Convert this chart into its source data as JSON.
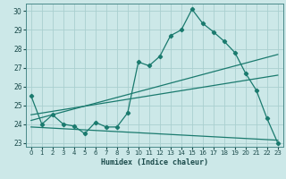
{
  "xlabel": "Humidex (Indice chaleur)",
  "bg_color": "#cce8e8",
  "grid_color": "#aacfcf",
  "line_color": "#1a7a6e",
  "xlim": [
    -0.5,
    23.5
  ],
  "ylim": [
    22.8,
    30.4
  ],
  "xticks": [
    0,
    1,
    2,
    3,
    4,
    5,
    6,
    7,
    8,
    9,
    10,
    11,
    12,
    13,
    14,
    15,
    16,
    17,
    18,
    19,
    20,
    21,
    22,
    23
  ],
  "yticks": [
    23,
    24,
    25,
    26,
    27,
    28,
    29,
    30
  ],
  "series1_x": [
    0,
    1,
    2,
    3,
    4,
    5,
    6,
    7,
    8,
    9,
    10,
    11,
    12,
    13,
    14,
    15,
    16,
    17,
    18,
    19,
    20,
    21,
    22,
    23
  ],
  "series1_y": [
    25.5,
    24.0,
    24.5,
    24.0,
    23.9,
    23.5,
    24.1,
    23.85,
    23.85,
    24.6,
    27.3,
    27.1,
    27.6,
    28.7,
    29.0,
    30.1,
    29.35,
    28.9,
    28.4,
    27.8,
    26.7,
    25.8,
    24.3,
    23.0
  ],
  "series2_x": [
    0,
    23
  ],
  "series2_y": [
    24.2,
    27.7
  ],
  "series3_x": [
    0,
    23
  ],
  "series3_y": [
    24.5,
    26.6
  ],
  "series4_x": [
    0,
    23
  ],
  "series4_y": [
    23.85,
    23.15
  ]
}
